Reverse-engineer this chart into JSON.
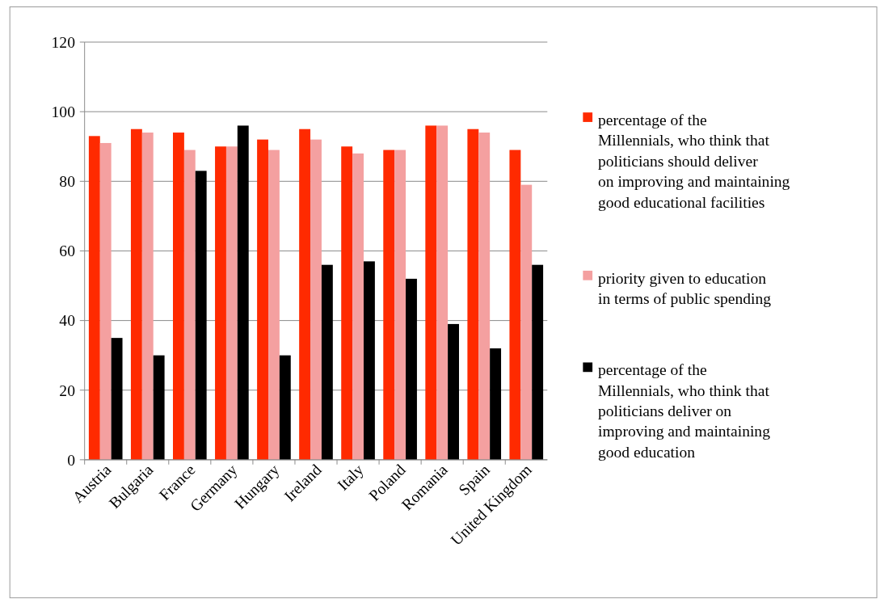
{
  "chart_data": {
    "type": "bar",
    "categories": [
      "Austria",
      "Bulgaria",
      "France",
      "Germany",
      "Hungary",
      "Ireland",
      "Italy",
      "Poland",
      "Romania",
      "Spain",
      "United Kingdom"
    ],
    "series": [
      {
        "name": "percentage of the Millennials, who think that politicians should deliver on improving and maintaining good educational facilities",
        "color": "#ff2a00",
        "values": [
          93,
          95,
          94,
          90,
          92,
          95,
          90,
          89,
          96,
          95,
          89
        ]
      },
      {
        "name": "priority given to education in terms of public spending",
        "color": "#f4a0a0",
        "values": [
          91,
          94,
          89,
          90,
          89,
          92,
          88,
          89,
          96,
          94,
          79
        ]
      },
      {
        "name": "percentage of the Millennials, who think that politicians deliver on improving and maintaining good education",
        "color": "#000000",
        "values": [
          35,
          30,
          83,
          96,
          30,
          56,
          57,
          52,
          39,
          32,
          56
        ]
      }
    ],
    "ylim": [
      0,
      120
    ],
    "yticks": [
      0,
      20,
      40,
      60,
      80,
      100,
      120
    ],
    "grid": "y",
    "legend": "right"
  }
}
